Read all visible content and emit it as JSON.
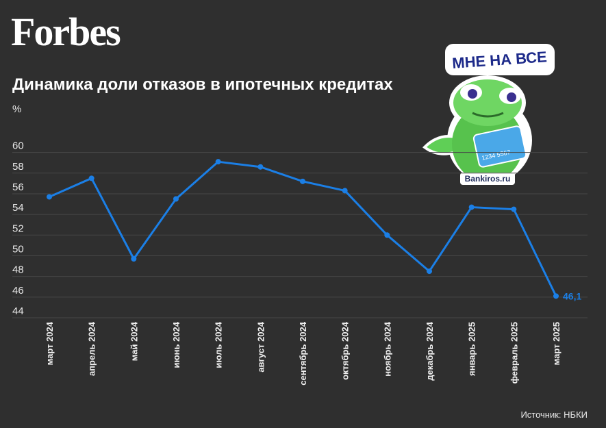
{
  "header": {
    "logo": "Forbes"
  },
  "source": "Источник: НБКИ",
  "sticker": {
    "caption": "МНЕ НА ВСЕ",
    "site": "Bankiros.ru",
    "card": "1234 5567"
  },
  "chart_data": {
    "type": "line",
    "title": "Динамика доли отказов в ипотечных кредитах",
    "y_label": "%",
    "categories": [
      "март 2024",
      "апрель 2024",
      "май 2024",
      "июнь 2024",
      "июль 2024",
      "август 2024",
      "сентябрь 2024",
      "октябрь 2024",
      "ноябрь 2024",
      "декабрь 2024",
      "январь 2025",
      "февраль 2025",
      "март 2025"
    ],
    "values": [
      55.7,
      57.5,
      49.7,
      55.5,
      59.1,
      58.6,
      57.2,
      56.3,
      52.0,
      48.5,
      54.7,
      54.5,
      46.1
    ],
    "value_labels": [
      null,
      null,
      null,
      null,
      null,
      null,
      null,
      null,
      null,
      null,
      null,
      null,
      "46,1"
    ],
    "color": "#1b7fe6",
    "ylim": [
      44,
      60
    ],
    "yticks": [
      44,
      46,
      48,
      50,
      52,
      54,
      56,
      58,
      60
    ],
    "grid": true
  }
}
